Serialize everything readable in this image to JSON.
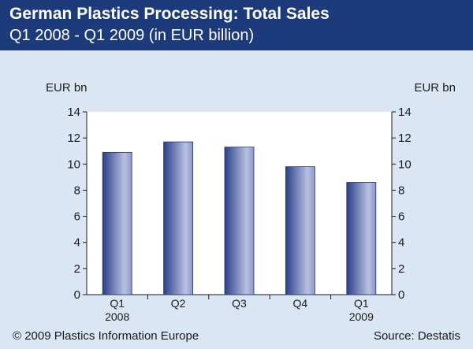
{
  "header": {
    "title": "German Plastics Processing: Total Sales",
    "subtitle": "Q1 2008 - Q1 2009 (in EUR billion)"
  },
  "axis_unit_left": "EUR bn",
  "axis_unit_right": "EUR bn",
  "footer": {
    "copyright": "© 2009 Plastics Information Europe",
    "source": "Source: Destatis"
  },
  "colors": {
    "header_bg": "#1d3a7a",
    "page_bg": "#dbe6f4",
    "bar_dark": "#2b3f86",
    "bar_light": "#b9c1e2"
  },
  "chart_data": {
    "type": "bar",
    "categories": [
      [
        "Q1",
        "2008"
      ],
      [
        "Q2"
      ],
      [
        "Q3"
      ],
      [
        "Q4"
      ],
      [
        "Q1",
        "2009"
      ]
    ],
    "values": [
      10.9,
      11.7,
      11.3,
      9.8,
      8.6
    ],
    "ylim": [
      0,
      14
    ],
    "yticks": [
      0,
      2,
      4,
      6,
      8,
      10,
      12,
      14
    ],
    "xlabel": "",
    "ylabel": "EUR bn",
    "grid": false,
    "legend": "none"
  }
}
